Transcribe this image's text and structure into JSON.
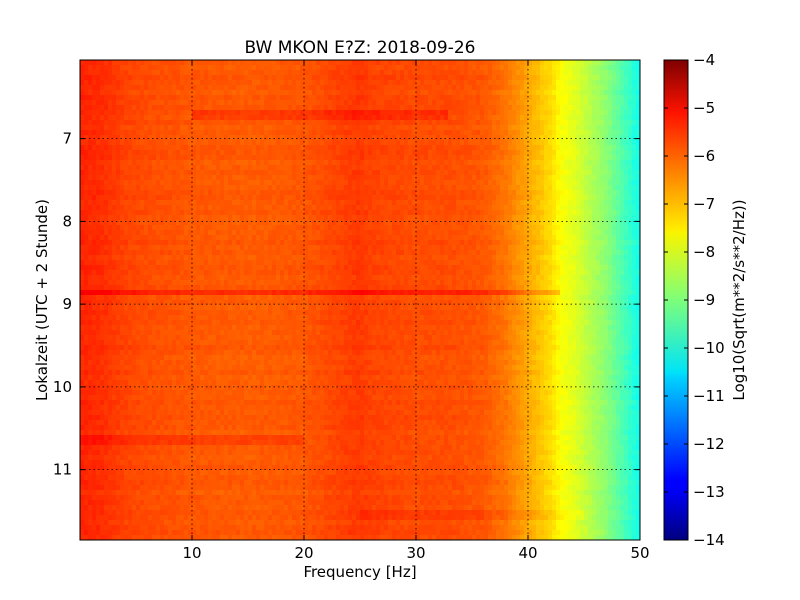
{
  "chart_data": {
    "type": "heatmap",
    "title": "BW MKON E?Z: 2018-09-26",
    "xlabel": "Frequency [Hz]",
    "ylabel": "Lokalzeit (UTC + 2 Stunde)",
    "xlim": [
      0,
      50
    ],
    "ylim": [
      6.05,
      11.85
    ],
    "y_inverted": true,
    "x_ticks": [
      10,
      20,
      30,
      40,
      50
    ],
    "x_tick_labels": [
      "10",
      "20",
      "30",
      "40",
      "50"
    ],
    "y_ticks": [
      7,
      8,
      9,
      10,
      11
    ],
    "y_tick_labels": [
      "7",
      "8",
      "9",
      "10",
      "11"
    ],
    "grid": true,
    "colormap": "jet",
    "colorbar": {
      "label": "Log10(Sqrt(m**2/s**2/Hz))",
      "range": [
        -14,
        -4
      ],
      "ticks": [
        -4,
        -5,
        -6,
        -7,
        -8,
        -9,
        -10,
        -11,
        -12,
        -13,
        -14
      ],
      "tick_labels": [
        "−4",
        "−5",
        "−6",
        "−7",
        "−8",
        "−9",
        "−10",
        "−11",
        "−12",
        "−13",
        "−14"
      ]
    },
    "frequency_profile": {
      "frequency_hz": [
        0,
        2,
        4,
        6,
        10,
        15,
        20,
        24,
        25,
        26,
        30,
        33,
        36,
        38,
        40,
        42,
        43,
        44,
        45,
        46,
        47,
        48,
        49,
        50
      ],
      "log10_amplitude": [
        -5.6,
        -5.7,
        -5.9,
        -6.0,
        -6.1,
        -6.15,
        -6.1,
        -5.85,
        -5.8,
        -5.9,
        -6.0,
        -6.0,
        -6.1,
        -6.4,
        -6.9,
        -7.4,
        -7.8,
        -8.0,
        -8.3,
        -8.6,
        -8.9,
        -9.3,
        -9.7,
        -10.1
      ]
    },
    "time_features": [
      {
        "time_h": 8.85,
        "freq_range_hz": [
          0,
          43
        ],
        "delta": 0.45
      },
      {
        "time_h": 6.7,
        "freq_range_hz": [
          10,
          33
        ],
        "delta": 0.3
      },
      {
        "time_h": 10.65,
        "freq_range_hz": [
          0,
          20
        ],
        "delta": 0.25
      },
      {
        "time_h": 11.55,
        "freq_range_hz": [
          25,
          45
        ],
        "delta": 0.15
      }
    ]
  }
}
